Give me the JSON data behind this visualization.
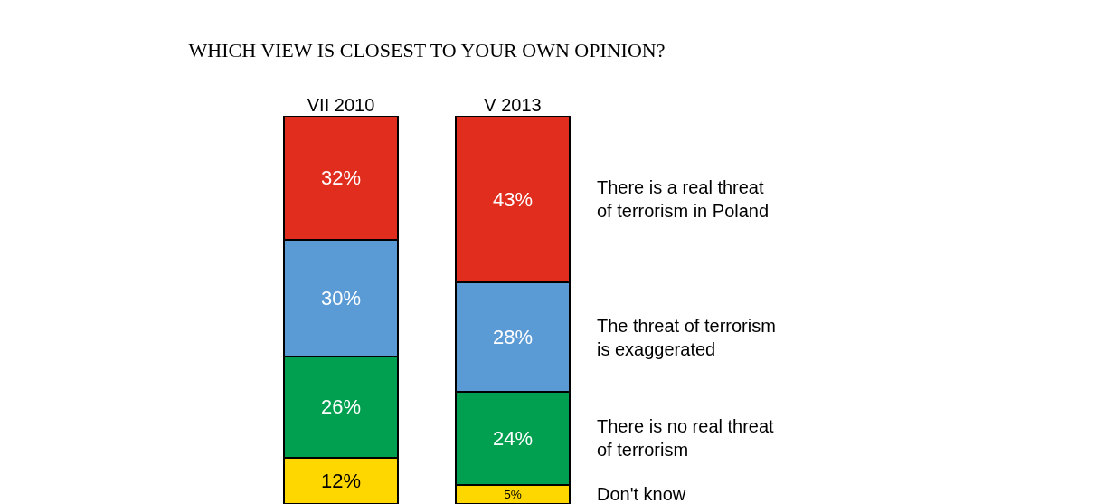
{
  "chart_data": {
    "type": "bar",
    "title": "WHICH VIEW IS CLOSEST TO YOUR OWN OPINION?",
    "categories": [
      "VII 2010",
      "V 2013"
    ],
    "stacked": true,
    "legend": false,
    "grid": false,
    "series": [
      {
        "name": "Don't know",
        "color": "#ffd700",
        "values": [
          12,
          5
        ],
        "value_labels": [
          "12%",
          "5%"
        ]
      },
      {
        "name": "There is no real threat\nof terrorism",
        "color": "#00a050",
        "values": [
          26,
          24
        ],
        "value_labels": [
          "26%",
          "24%"
        ]
      },
      {
        "name": "The threat of terrorism\nis exaggerated",
        "color": "#5b9bd5",
        "values": [
          30,
          28
        ],
        "value_labels": [
          "30%",
          "28%"
        ]
      },
      {
        "name": "There is a real threat\nof terrorism in Poland",
        "color": "#e02d1e",
        "values": [
          32,
          43
        ],
        "value_labels": [
          "32%",
          "43%"
        ]
      }
    ]
  }
}
